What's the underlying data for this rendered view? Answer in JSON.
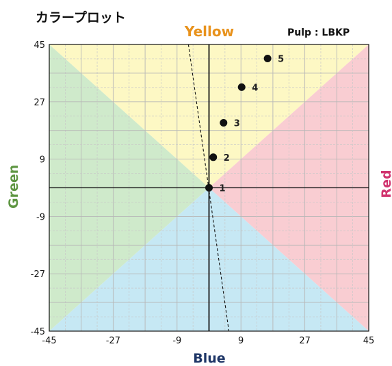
{
  "chart_data": {
    "type": "scatter",
    "title": "カラープロット",
    "note": "Pulp : LBKP",
    "axis_labels": {
      "top": "Yellow",
      "bottom": "Blue",
      "left": "Green",
      "right": "Red"
    },
    "xlim": [
      -45,
      45
    ],
    "ylim": [
      -45,
      45
    ],
    "x_ticks": [
      -45,
      -27,
      -9,
      9,
      27,
      45
    ],
    "y_ticks": [
      45,
      27,
      9,
      -9,
      -27,
      -45
    ],
    "grid": true,
    "points": [
      {
        "label": "1",
        "x": 0,
        "y": 0
      },
      {
        "label": "2",
        "x": 1.2,
        "y": 9.6
      },
      {
        "label": "3",
        "x": 4.1,
        "y": 20.4
      },
      {
        "label": "4",
        "x": 9.2,
        "y": 31.6
      },
      {
        "label": "5",
        "x": 16.5,
        "y": 40.6
      }
    ],
    "trend_line": {
      "style": "dashed",
      "x_at_y_max": -5.8,
      "x_at_y_min": 5.6
    },
    "colors": {
      "yellow_region": "#fdf8c4",
      "red_region": "#f9cdd2",
      "blue_region": "#c6e8f4",
      "green_region": "#cfeacb",
      "yellow_label": "#e8921c",
      "blue_label": "#1d3566",
      "green_label": "#5e9642",
      "red_label": "#d0336e",
      "point": "#111111"
    }
  }
}
